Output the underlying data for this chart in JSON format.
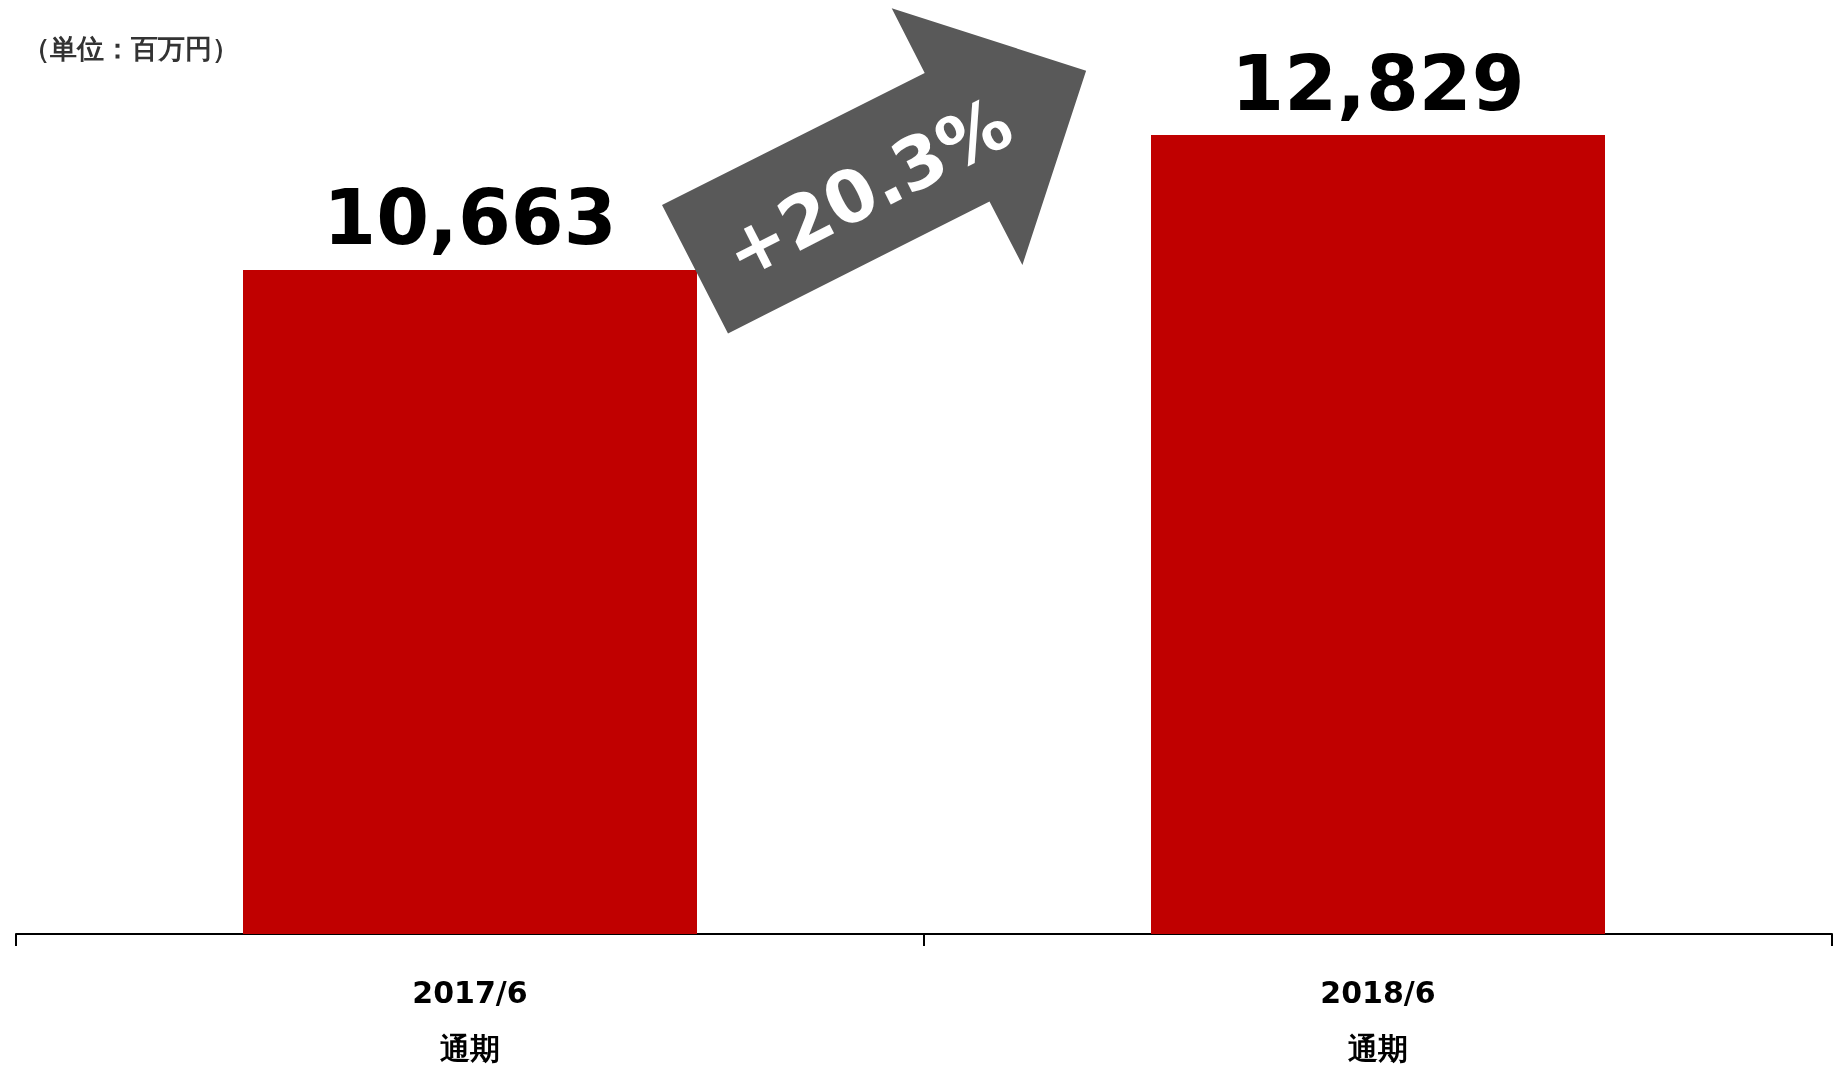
{
  "chart_data": {
    "type": "bar",
    "subtitle": "（単位：百万円）",
    "categories": [
      "2017/6\n通期",
      "2018/6\n通期"
    ],
    "values": [
      10663,
      12829
    ],
    "value_labels": [
      "10,663",
      "12,829"
    ],
    "color": "#c00000",
    "annotations": [
      "+20.3%"
    ]
  }
}
